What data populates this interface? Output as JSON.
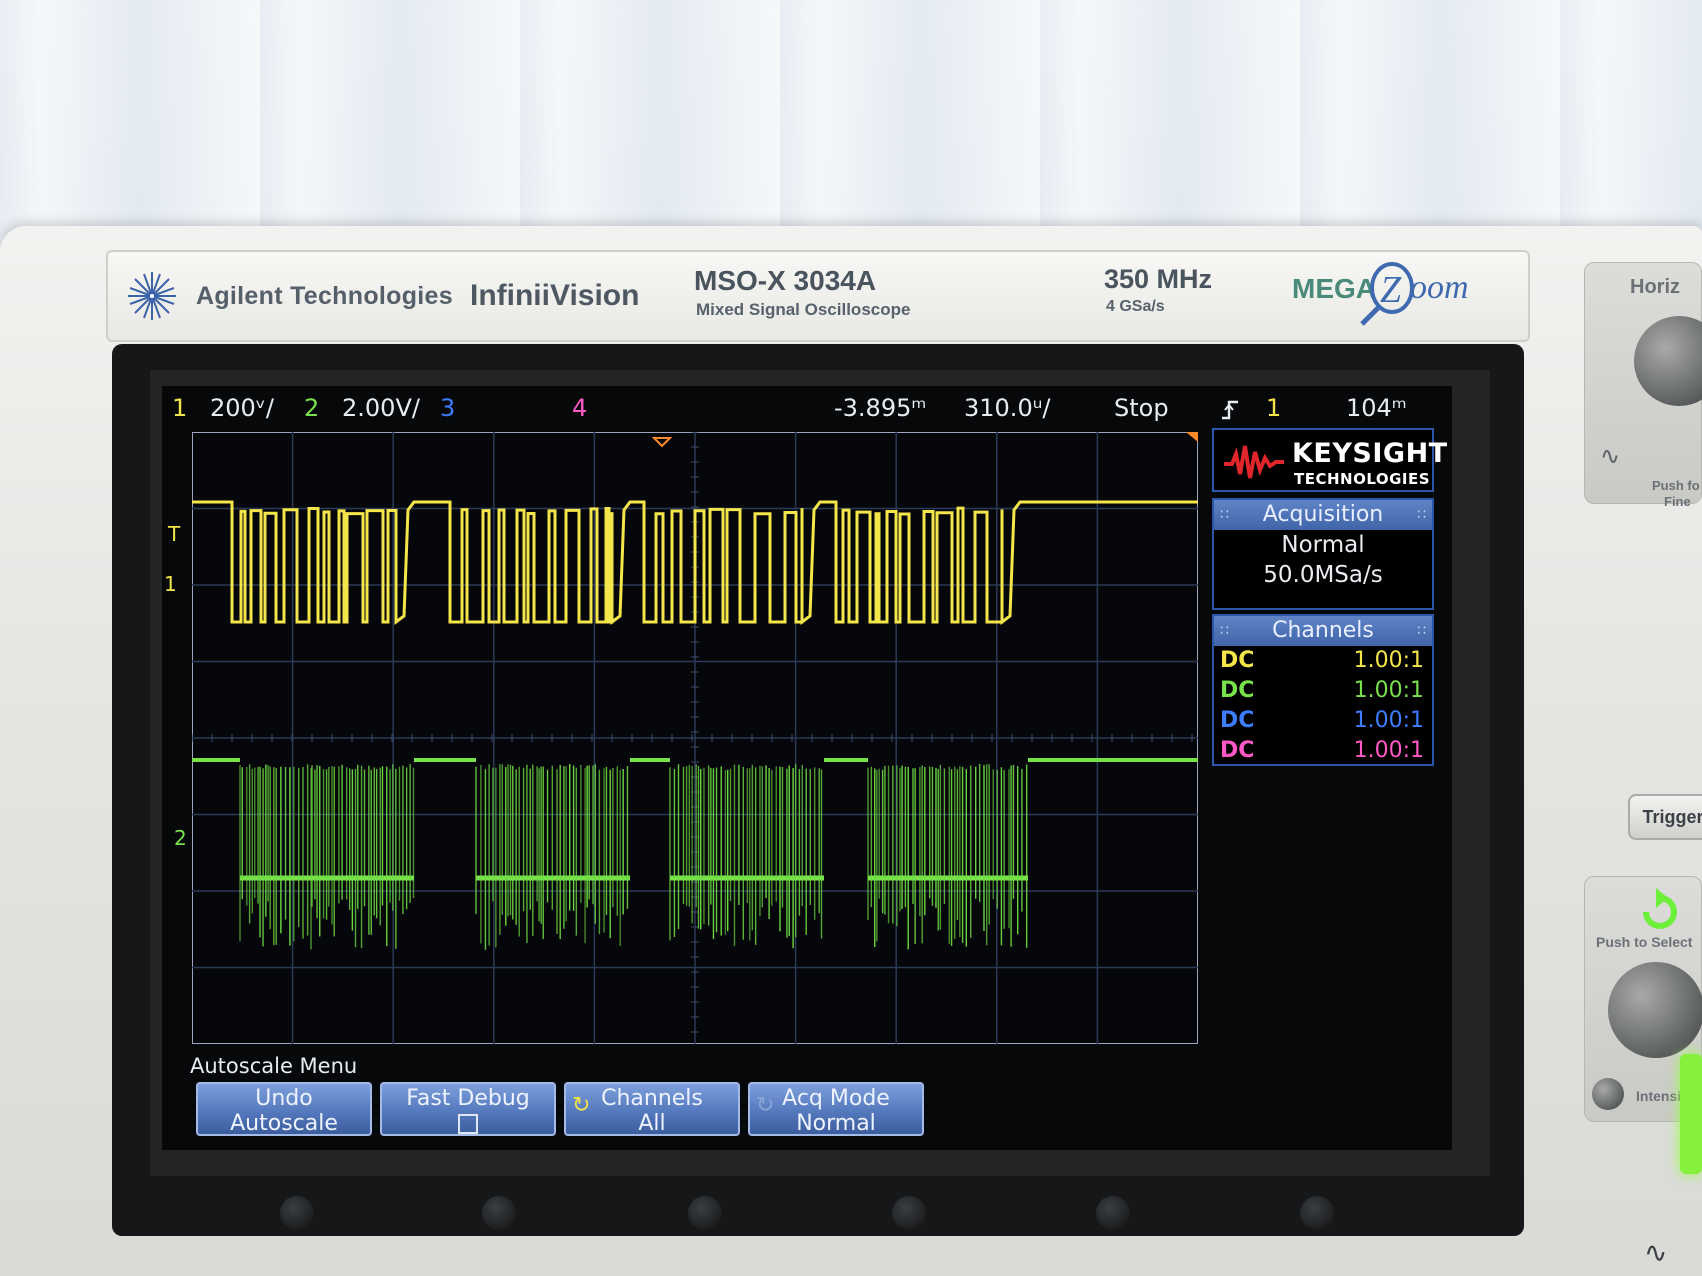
{
  "brand": {
    "company": "Agilent Technologies",
    "series": "InfiniiVision",
    "model": "MSO-X 3034A",
    "model_desc": "Mixed Signal Oscilloscope",
    "bandwidth": "350 MHz",
    "sample_rate": "4 GSa/s",
    "megazoom_left": "MEGA",
    "megazoom_right": "oom"
  },
  "status_bar": {
    "ch1_num": "1",
    "ch1_scale": "200ᵛ/",
    "ch2_num": "2",
    "ch2_scale": "2.00V/",
    "ch3_num": "3",
    "ch4_num": "4",
    "time_offset": "-3.895ᵐ",
    "time_scale": "310.0ᵘ/",
    "run_state": "Stop",
    "trigger_icon": "rising-edge-icon",
    "trigger_source": "1",
    "trigger_level": "104ᵐ"
  },
  "markers": {
    "trigger_marker": "T",
    "ch1_ground": "1",
    "ch2_ground": "2"
  },
  "right_panel": {
    "logo_main": "KEYSIGHT",
    "logo_sub": "TECHNOLOGIES",
    "acquisition": {
      "title": "Acquisition",
      "mode": "Normal",
      "rate": "50.0MSa/s"
    },
    "channels": {
      "title": "Channels",
      "rows": [
        {
          "coupling": "DC",
          "probe": "1.00:1",
          "color": "#f4e64a"
        },
        {
          "coupling": "DC",
          "probe": "1.00:1",
          "color": "#79e24b"
        },
        {
          "coupling": "DC",
          "probe": "1.00:1",
          "color": "#3d7dff"
        },
        {
          "coupling": "DC",
          "probe": "1.00:1",
          "color": "#ff59c8"
        }
      ]
    }
  },
  "menu": {
    "title": "Autoscale Menu",
    "softkeys": [
      {
        "line1": "Undo",
        "line2": "Autoscale"
      },
      {
        "line1": "Fast Debug",
        "line2": ""
      },
      {
        "line1": "Channels",
        "line2": "All"
      },
      {
        "line1": "Acq Mode",
        "line2": "Normal"
      }
    ]
  },
  "side_panel": {
    "horizontal": "Horiz",
    "push_fine_1": "Push fo",
    "push_fine_2": "Fine",
    "trigger": "Trigger",
    "push_select": "Push to Select",
    "intensity": "Intensity"
  },
  "colors": {
    "ch1": "#f4e64a",
    "ch2": "#79e24b",
    "ch3": "#3d7dff",
    "ch4": "#ff59c8",
    "grid": "#2a3a55",
    "softkey": "#5479bd"
  }
}
